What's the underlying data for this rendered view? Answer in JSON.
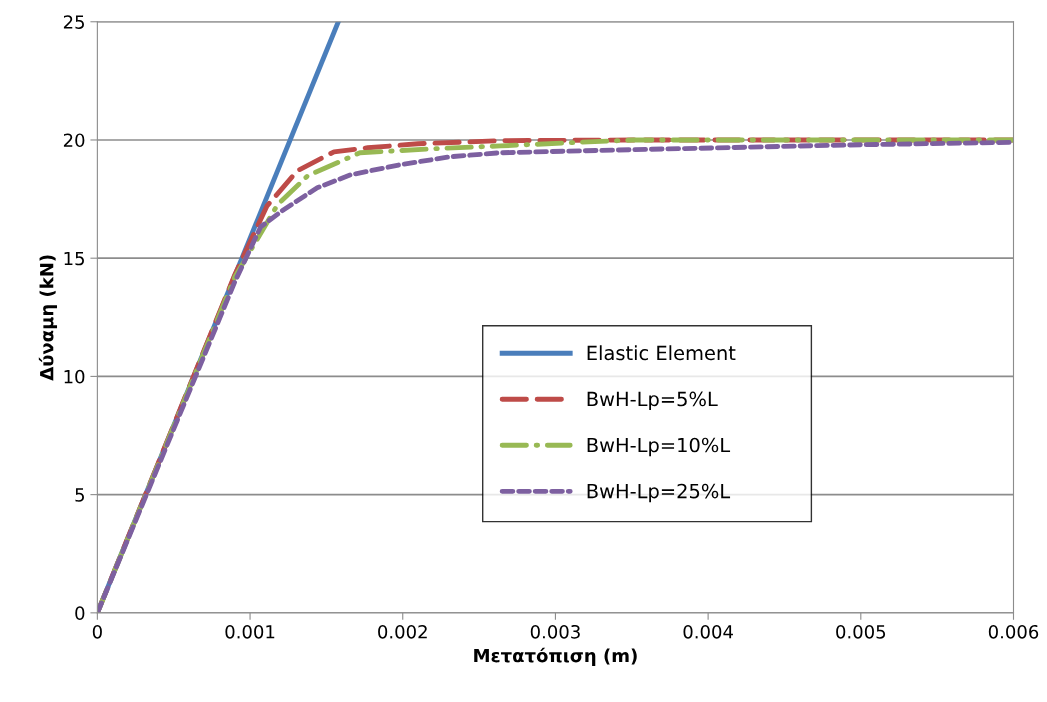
{
  "chart_data": {
    "type": "line",
    "xlabel": "Μετατόπιση (m)",
    "ylabel": "Δύναμη (kN)",
    "xlim": [
      0,
      0.006
    ],
    "xticks": [
      0,
      0.001,
      0.002,
      0.003,
      0.004,
      0.005,
      0.006
    ],
    "ylim": [
      0,
      25
    ],
    "yticks": [
      0,
      5,
      10,
      15,
      20,
      25
    ],
    "grid": "y",
    "legend": "right",
    "marker": "none",
    "series": [
      {
        "name": "Elastic Element",
        "color": "#4a7ebb",
        "line_style": "solid",
        "x": [
          0,
          0.001578
        ],
        "values": [
          0,
          25
        ]
      },
      {
        "name": "BwH-Lp=5%L",
        "color": "#be4b48",
        "line_style": "dashed",
        "x": [
          0,
          0.0009,
          0.00111,
          0.00131,
          0.00155,
          0.00177,
          0.0021,
          0.00264,
          0.0035,
          0.006
        ],
        "values": [
          0,
          14.3,
          17.2,
          18.7,
          19.5,
          19.67,
          19.84,
          19.97,
          20,
          20
        ]
      },
      {
        "name": "BwH-Lp=10%L",
        "color": "#98b954",
        "line_style": "dashdot",
        "x": [
          0,
          0.0009,
          0.00118,
          0.00138,
          0.00172,
          0.0022,
          0.00264,
          0.00308,
          0.00351,
          0.006
        ],
        "values": [
          0,
          14.2,
          17.26,
          18.5,
          19.46,
          19.63,
          19.75,
          19.88,
          20,
          20
        ]
      },
      {
        "name": "BwH-Lp=25%L",
        "color": "#7d60a0",
        "line_style": "dotted",
        "x": [
          0,
          0.0009,
          0.00107,
          0.00122,
          0.00144,
          0.00166,
          0.00198,
          0.00231,
          0.00264,
          0.00351,
          0.005,
          0.006
        ],
        "values": [
          0,
          14.0,
          16.33,
          17.05,
          17.98,
          18.53,
          18.95,
          19.29,
          19.46,
          19.59,
          19.8,
          19.9
        ]
      }
    ]
  }
}
